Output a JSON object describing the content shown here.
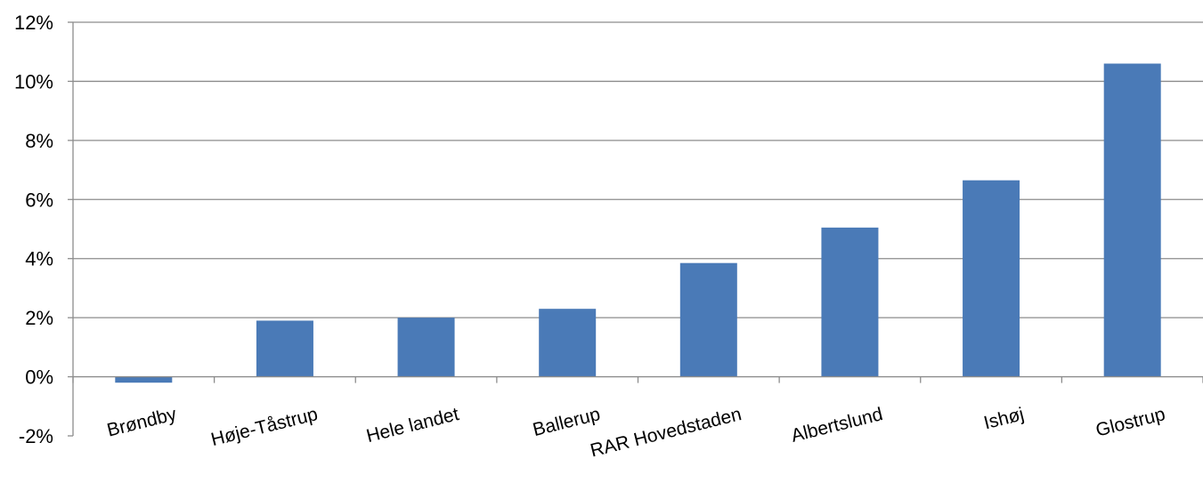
{
  "chart_data": {
    "type": "bar",
    "categories": [
      "Brøndby",
      "Høje-Tåstrup",
      "Hele landet",
      "Ballerup",
      "RAR Hovedstaden",
      "Albertslund",
      "Ishøj",
      "Glostrup"
    ],
    "values": [
      -0.2,
      1.9,
      2.0,
      2.3,
      3.85,
      5.05,
      6.65,
      10.6
    ],
    "ylim": [
      -2,
      12
    ],
    "yticks": [
      -2,
      0,
      2,
      4,
      6,
      8,
      10,
      12
    ],
    "ytick_labels": [
      "-2%",
      "0%",
      "2%",
      "4%",
      "6%",
      "8%",
      "10%",
      "12%"
    ],
    "grid": true,
    "colors": {
      "bar": "#4a7ab7",
      "grid": "#8c8c8c",
      "axis": "#8c8c8c"
    }
  }
}
